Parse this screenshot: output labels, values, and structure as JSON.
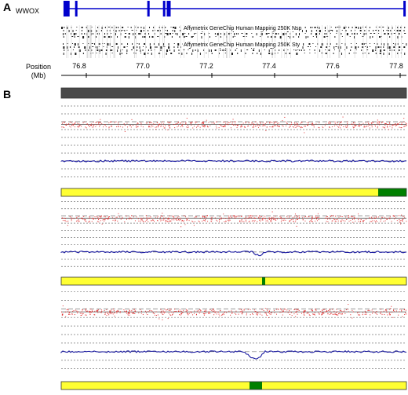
{
  "panel_a": {
    "label": "A",
    "gene": "WWOX",
    "probe_sets": [
      "Affymetrix GeneChip Human Mapping 250K Nsp",
      "Affymetrix GeneChip Human Mapping 250K Sty"
    ],
    "axis": {
      "title_line1": "Position",
      "title_line2": "(Mb)",
      "ticks": [
        "76.8",
        "77.0",
        "77.2",
        "77.4",
        "77.6",
        "77.8"
      ]
    }
  },
  "panel_b": {
    "label": "B"
  },
  "chart_data": {
    "type": "genome-browser",
    "x_unit": "Mb",
    "x_range": [
      76.72,
      77.82
    ],
    "tick_values": [
      76.8,
      77.0,
      77.2,
      77.4,
      77.6,
      77.8
    ],
    "gene_exons_mb": [
      76.731,
      76.734,
      76.737,
      76.74,
      76.743,
      76.768,
      76.998,
      77.048,
      77.06,
      77.065,
      77.814
    ],
    "samples": [
      {
        "status_segments": [
          {
            "start": 76.72,
            "end": 77.82,
            "color": "#4a4a4a"
          }
        ]
      },
      {
        "status_segments": [
          {
            "start": 76.72,
            "end": 77.73,
            "color": "#ffff33"
          },
          {
            "start": 77.73,
            "end": 77.82,
            "color": "#008000"
          }
        ]
      },
      {
        "status_segments": [
          {
            "start": 76.72,
            "end": 77.36,
            "color": "#ffff33"
          },
          {
            "start": 77.36,
            "end": 77.37,
            "color": "#008000"
          },
          {
            "start": 77.37,
            "end": 77.82,
            "color": "#ffff33"
          }
        ]
      },
      {
        "status_segments": [
          {
            "start": 76.72,
            "end": 77.32,
            "color": "#ffff33"
          },
          {
            "start": 77.32,
            "end": 77.36,
            "color": "#008000"
          },
          {
            "start": 77.36,
            "end": 77.82,
            "color": "#ffff33"
          }
        ]
      }
    ],
    "colors": {
      "gene": "#0000cc",
      "scatter": "#e03030",
      "trace": "#1a1aa0",
      "het": "#ffff33",
      "hom": "#008000",
      "header": "#4a4a4a"
    }
  }
}
